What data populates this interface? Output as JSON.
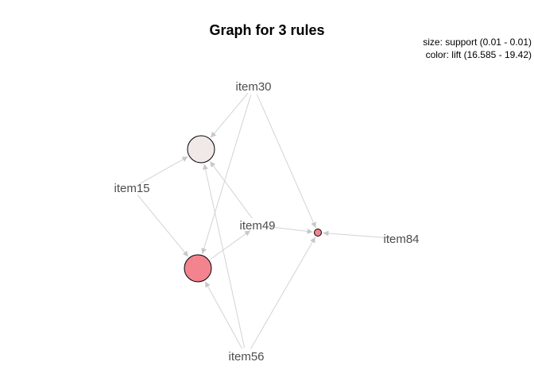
{
  "title": "Graph for 3 rules",
  "legend": {
    "size": "size: support (0.01 - 0.01)",
    "color": "color: lift (16.585 - 19.42)"
  },
  "colors": {
    "edge": "#d3d3d3",
    "label": "#4d4d4d",
    "rule_outline": "#000000"
  },
  "items": [
    {
      "id": "item30",
      "label": "item30"
    },
    {
      "id": "item15",
      "label": "item15"
    },
    {
      "id": "item49",
      "label": "item49"
    },
    {
      "id": "item84",
      "label": "item84"
    },
    {
      "id": "item56",
      "label": "item56"
    }
  ],
  "rules": [
    {
      "id": "rule1",
      "support_size": "large",
      "fill": "#f1e8e8"
    },
    {
      "id": "rule2",
      "support_size": "large",
      "fill": "#f3848f"
    },
    {
      "id": "rule3",
      "support_size": "small",
      "fill": "#f3848f"
    }
  ],
  "edges": [
    {
      "from": "item30",
      "to": "rule1"
    },
    {
      "from": "item15",
      "to": "rule1"
    },
    {
      "from": "item49",
      "to": "rule1"
    },
    {
      "from": "item56",
      "to": "rule1"
    },
    {
      "from": "item30",
      "to": "rule2"
    },
    {
      "from": "item15",
      "to": "rule2"
    },
    {
      "from": "rule2",
      "to": "item49"
    },
    {
      "from": "item56",
      "to": "rule2"
    },
    {
      "from": "item30",
      "to": "rule3"
    },
    {
      "from": "item49",
      "to": "rule3"
    },
    {
      "from": "item84",
      "to": "rule3"
    },
    {
      "from": "item56",
      "to": "rule3"
    }
  ]
}
